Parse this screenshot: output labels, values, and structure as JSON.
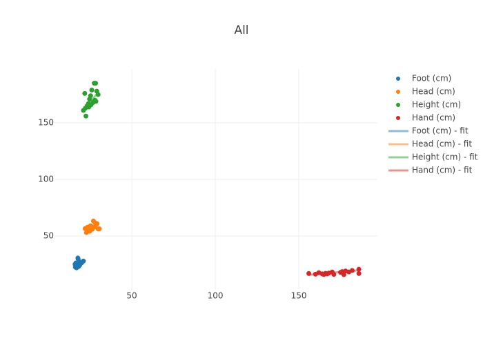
{
  "chart_data": {
    "type": "scatter",
    "title": "All",
    "xlim": [
      4.1,
      197.1
    ],
    "ylim": [
      2.4,
      197.6
    ],
    "xticks": [
      50,
      100,
      150
    ],
    "yticks": [
      50,
      100,
      150
    ],
    "grid": true,
    "legend": "right",
    "series": [
      {
        "name": "Foot (cm)",
        "color": "#1f77b4",
        "mode": "markers",
        "x": [
          16.2,
          17.1,
          17.8,
          16.5,
          18.3,
          19.0,
          17.4,
          20.1,
          18.8,
          16.9,
          19.5,
          17.7,
          21.0,
          18.1,
          16.0
        ],
        "values": [
          22.5,
          24.8,
          29.7,
          26.1,
          25.3,
          27.0,
          23.4,
          26.5,
          24.2,
          21.8,
          25.9,
          30.5,
          27.8,
          23.0,
          25.0
        ]
      },
      {
        "name": "Head (cm)",
        "color": "#ff7f0e",
        "mode": "markers",
        "x": [
          22.0,
          23.5,
          24.8,
          25.5,
          26.3,
          27.0,
          28.1,
          29.2,
          30.5,
          24.0,
          26.0,
          27.8,
          22.8,
          29.8,
          25.2
        ],
        "values": [
          56.5,
          57.8,
          54.2,
          58.9,
          56.0,
          63.2,
          61.5,
          60.8,
          56.3,
          55.5,
          57.2,
          58.1,
          53.0,
          56.2,
          59.0
        ]
      },
      {
        "name": "Height (cm)",
        "color": "#2ca02c",
        "mode": "markers",
        "x": [
          21.0,
          21.8,
          22.5,
          23.2,
          24.0,
          24.7,
          25.3,
          26.0,
          26.8,
          27.5,
          28.3,
          29.0,
          29.8,
          22.2,
          25.6,
          27.9,
          24.3,
          28.5
        ],
        "values": [
          161,
          176,
          156,
          165,
          167,
          171,
          174,
          179,
          168,
          185,
          185,
          178,
          175,
          163,
          166,
          170,
          164,
          169
        ]
      },
      {
        "name": "Hand (cm)",
        "color": "#d62728",
        "mode": "markers",
        "x": [
          156,
          160,
          162,
          164,
          165,
          166,
          167,
          168,
          170,
          171,
          175,
          176,
          177,
          178,
          180,
          182,
          186,
          186
        ],
        "values": [
          16.8,
          16.2,
          17.5,
          16.5,
          15.9,
          17.0,
          16.4,
          17.2,
          18.1,
          16.0,
          17.8,
          18.5,
          15.8,
          19.0,
          18.2,
          19.5,
          20.6,
          16.8
        ]
      },
      {
        "name": "Foot (cm) - fit",
        "color": "#1f77b4",
        "mode": "lines",
        "x": [
          16.0,
          21.0
        ],
        "values": [
          22.8,
          28.2
        ]
      },
      {
        "name": "Head (cm) - fit",
        "color": "#ff7f0e",
        "mode": "lines",
        "x": [
          22.0,
          30.5
        ],
        "values": [
          56.8,
          57.6
        ]
      },
      {
        "name": "Height (cm) - fit",
        "color": "#2ca02c",
        "mode": "lines",
        "x": [
          21.0,
          29.8
        ],
        "values": [
          161,
          177
        ]
      },
      {
        "name": "Hand (cm) - fit",
        "color": "#d62728",
        "mode": "lines",
        "x": [
          156,
          186
        ],
        "values": [
          15.6,
          19.6
        ]
      }
    ]
  }
}
